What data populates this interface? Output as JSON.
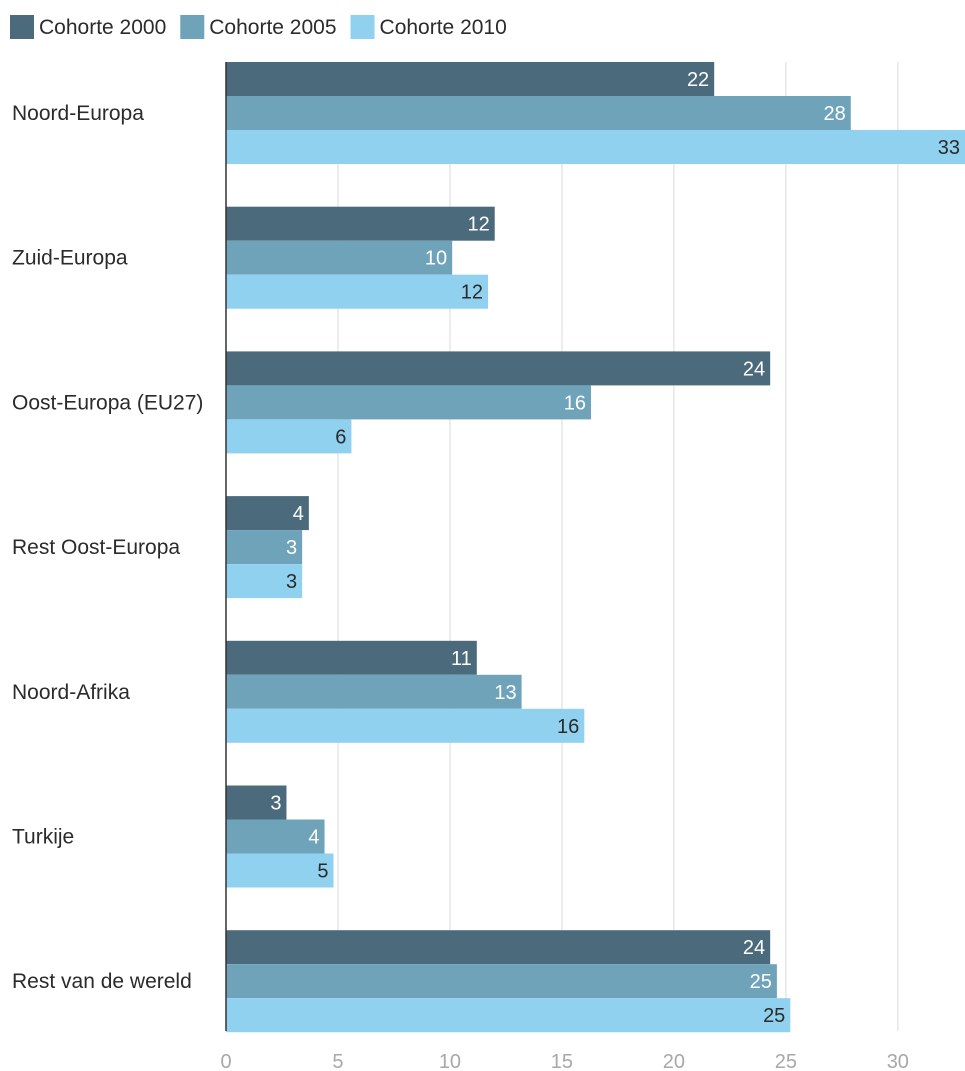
{
  "chart_data": {
    "type": "bar",
    "orientation": "horizontal",
    "title": "",
    "xlabel": "",
    "ylabel": "",
    "xlim": [
      0,
      33
    ],
    "ticks": [
      0,
      5,
      10,
      15,
      20,
      25,
      30
    ],
    "grid": true,
    "legend_position": "top-left",
    "categories": [
      "Noord-Europa",
      "Zuid-Europa",
      "Oost-Europa (EU27)",
      "Rest Oost-Europa",
      "Noord-Afrika",
      "Turkije",
      "Rest van de wereld"
    ],
    "series": [
      {
        "name": "Cohorte 2000",
        "color": "#4b6b7c",
        "label_color": "#ffffff",
        "values": [
          21.8,
          12.0,
          24.3,
          3.7,
          11.2,
          2.7,
          24.3
        ],
        "labels": [
          "22",
          "12",
          "24",
          "4",
          "11",
          "3",
          "24"
        ]
      },
      {
        "name": "Cohorte 2005",
        "color": "#6fa3ba",
        "label_color": "#ffffff",
        "values": [
          27.9,
          10.1,
          16.3,
          3.4,
          13.2,
          4.4,
          24.6
        ],
        "labels": [
          "28",
          "10",
          "16",
          "3",
          "13",
          "4",
          "25"
        ]
      },
      {
        "name": "Cohorte 2010",
        "color": "#8fd1ee",
        "label_color": "#2b2b2b",
        "values": [
          33.0,
          11.7,
          5.6,
          3.4,
          16.0,
          4.8,
          25.2
        ],
        "labels": [
          "33",
          "12",
          "6",
          "3",
          "16",
          "5",
          "25"
        ]
      }
    ]
  },
  "colors": {
    "grid": "#e6e6e6",
    "axis": "#333333",
    "tick_text": "#a8a8a8",
    "category_text": "#2b2b2b"
  }
}
